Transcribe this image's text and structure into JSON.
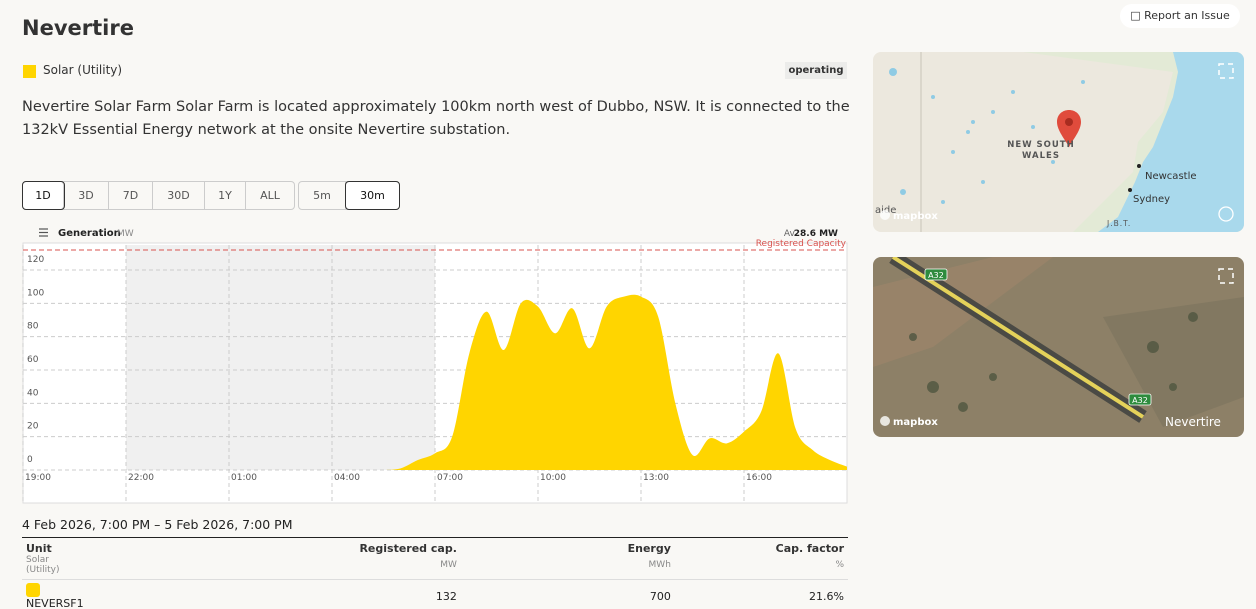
{
  "header": {
    "title": "Nevertire",
    "report": "Report an Issue"
  },
  "fuel": {
    "label": "Solar (Utility)",
    "color": "#ffd500"
  },
  "status": "operating",
  "description": "Nevertire Solar Farm Solar Farm is located approximately 100km north west of Dubbo, NSW. It is connected to the 132kV Essential Energy network at the onsite Nevertire substation.",
  "range_buttons": [
    "1D",
    "3D",
    "7D",
    "30D",
    "1Y",
    "ALL"
  ],
  "selected_range": 0,
  "interval_buttons": [
    "5m",
    "30m"
  ],
  "selected_interval": 1,
  "chart_data": {
    "type": "area",
    "title": "Generation",
    "unit": "MW",
    "average_label": "Av.",
    "average": "28.6 MW",
    "categories": [
      "19:00",
      null,
      null,
      null,
      null,
      null,
      "22:00",
      null,
      null,
      null,
      null,
      null,
      "01:00",
      null,
      null,
      null,
      null,
      null,
      "04:00",
      null,
      null,
      null,
      null,
      null,
      "07:00",
      null,
      null,
      null,
      null,
      null,
      "10:00",
      null,
      null,
      null,
      null,
      null,
      "13:00",
      null,
      null,
      null,
      null,
      null,
      "16:00",
      null,
      null,
      null,
      null,
      null,
      null
    ],
    "values": [
      0,
      0,
      0,
      0,
      0,
      0,
      0,
      0,
      0,
      0,
      0,
      0,
      0,
      0,
      0,
      0,
      0,
      0,
      0,
      0,
      0,
      0,
      1,
      6,
      10,
      20,
      70,
      95,
      72,
      100,
      98,
      82,
      97,
      73,
      98,
      104,
      104,
      92,
      40,
      9,
      19,
      16,
      23,
      35,
      70,
      25,
      12,
      6,
      2
    ],
    "color": "#ffd500",
    "ylim": [
      0,
      135
    ],
    "yticks": [
      0,
      20,
      40,
      60,
      80,
      100,
      120
    ],
    "grid": true,
    "reference_line": {
      "label": "Registered Capacity",
      "value": 132,
      "color": "#d9534f"
    }
  },
  "period": "4 Feb 2026, 7:00 PM – 5 Feb 2026, 7:00 PM",
  "table": {
    "headers": [
      [
        "Unit",
        "Solar (Utility)"
      ],
      [
        "Registered cap.",
        "MW"
      ],
      [
        "Energy",
        "MWh"
      ],
      [
        "Cap. factor",
        "%"
      ]
    ],
    "rows": [
      [
        "NEVERSF1",
        132,
        700,
        "21.6%"
      ]
    ]
  },
  "maps": {
    "region": {
      "state": [
        "NEW SOUTH",
        "WALES"
      ],
      "cities": [
        "Newcastle",
        "Sydney"
      ],
      "edge_labels": [
        "aide",
        "J.B.T."
      ],
      "brand": "mapbox"
    },
    "satellite": {
      "road": "A32",
      "town": "Nevertire",
      "brand": "mapbox"
    }
  }
}
